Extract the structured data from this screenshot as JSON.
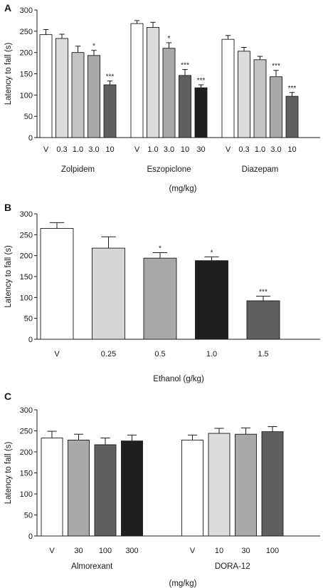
{
  "chart_data": [
    {
      "panel": "A",
      "type": "bar",
      "ylabel": "Latency to fall (s)",
      "xlabel": "(mg/kg)",
      "ylim": [
        0,
        300
      ],
      "yticks": [
        0,
        50,
        100,
        150,
        200,
        250,
        300
      ],
      "grid": false,
      "groups": [
        {
          "name": "Zolpidem",
          "categories": [
            "V",
            "0.3",
            "1.0",
            "3.0",
            "10"
          ],
          "values": [
            242,
            233,
            200,
            193,
            124
          ],
          "errors": [
            12,
            10,
            15,
            12,
            9
          ],
          "significance": [
            "",
            "",
            "",
            "*",
            "***"
          ],
          "colors": [
            "#ffffff",
            "#dcdcdc",
            "#c4c4c4",
            "#a9a9a9",
            "#5f5f5f"
          ]
        },
        {
          "name": "Eszopiclone",
          "categories": [
            "V",
            "1.0",
            "3.0",
            "10",
            "30"
          ],
          "values": [
            268,
            259,
            210,
            146,
            117
          ],
          "errors": [
            7,
            12,
            13,
            14,
            7
          ],
          "significance": [
            "",
            "",
            "*",
            "***",
            "***"
          ],
          "colors": [
            "#ffffff",
            "#dcdcdc",
            "#a9a9a9",
            "#5f5f5f",
            "#1f1f1f"
          ]
        },
        {
          "name": "Diazepam",
          "categories": [
            "V",
            "0.3",
            "1.0",
            "3.0",
            "10"
          ],
          "values": [
            231,
            203,
            183,
            143,
            97
          ],
          "errors": [
            9,
            9,
            8,
            15,
            9
          ],
          "significance": [
            "",
            "",
            "",
            "***",
            "***"
          ],
          "colors": [
            "#ffffff",
            "#dcdcdc",
            "#c4c4c4",
            "#a9a9a9",
            "#5f5f5f"
          ]
        }
      ]
    },
    {
      "panel": "B",
      "type": "bar",
      "ylabel": "Latency to fall (s)",
      "xlabel": "Ethanol (g/kg)",
      "ylim": [
        0,
        300
      ],
      "yticks": [
        0,
        50,
        100,
        150,
        200,
        250,
        300
      ],
      "grid": false,
      "groups": [
        {
          "name": "",
          "categories": [
            "V",
            "0.25",
            "0.5",
            "1.0",
            "1.5"
          ],
          "values": [
            265,
            218,
            194,
            188,
            92
          ],
          "errors": [
            14,
            27,
            13,
            9,
            11
          ],
          "significance": [
            "",
            "",
            "*",
            "*",
            "***"
          ],
          "colors": [
            "#ffffff",
            "#d6d6d6",
            "#a9a9a9",
            "#1f1f1f",
            "#5f5f5f"
          ]
        }
      ]
    },
    {
      "panel": "C",
      "type": "bar",
      "ylabel": "Latency to fall (s)",
      "xlabel": "(mg/kg)",
      "ylim": [
        0,
        300
      ],
      "yticks": [
        0,
        50,
        100,
        150,
        200,
        250,
        300
      ],
      "grid": false,
      "groups": [
        {
          "name": "Almorexant",
          "categories": [
            "V",
            "30",
            "100",
            "300"
          ],
          "values": [
            233,
            228,
            217,
            226
          ],
          "errors": [
            16,
            14,
            16,
            14
          ],
          "significance": [
            "",
            "",
            "",
            ""
          ],
          "colors": [
            "#ffffff",
            "#a9a9a9",
            "#5f5f5f",
            "#1f1f1f"
          ]
        },
        {
          "name": "DORA-12",
          "categories": [
            "V",
            "10",
            "30",
            "100"
          ],
          "values": [
            228,
            244,
            242,
            248
          ],
          "errors": [
            12,
            12,
            15,
            12
          ],
          "significance": [
            "",
            "",
            "",
            ""
          ],
          "colors": [
            "#ffffff",
            "#dcdcdc",
            "#a9a9a9",
            "#5f5f5f"
          ]
        }
      ]
    }
  ]
}
